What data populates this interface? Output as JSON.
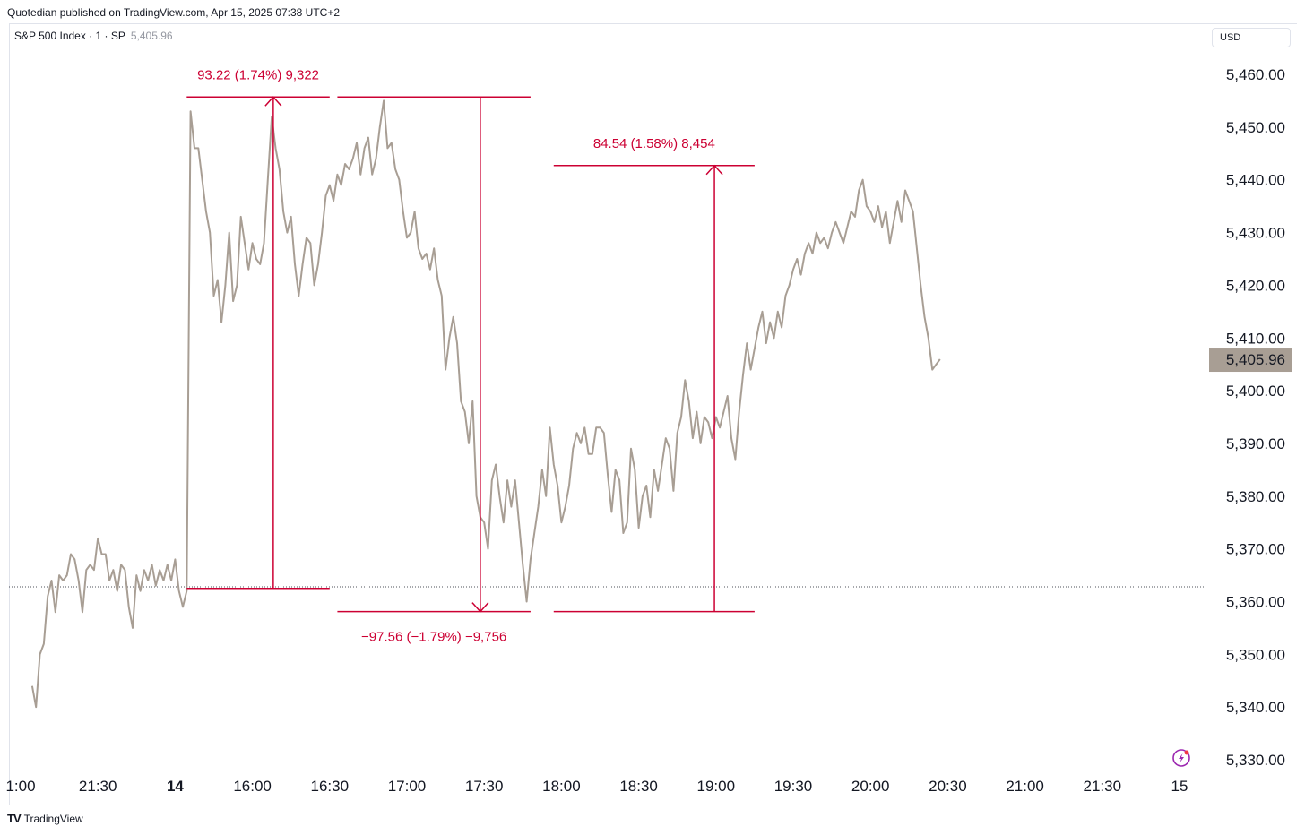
{
  "header": {
    "published": "Quotedian published on TradingView.com, Apr 15, 2025 07:38 UTC+2"
  },
  "legend": {
    "symbol": "S&P 500 Index · 1 · SP",
    "last_value": "5,405.96"
  },
  "currency_button": "USD",
  "footer": {
    "brand": "TradingView",
    "logo_icon": "tradingview-logo-icon"
  },
  "colors": {
    "line": "#a89e94",
    "measure": "#cc0033",
    "price_tag_bg": "#a89e94",
    "axis_text": "#131722"
  },
  "chart_data": {
    "type": "line",
    "title": "",
    "xlabel": "",
    "ylabel": "",
    "ylim": [
      5330,
      5460
    ],
    "y_ticks": [
      "5,460.00",
      "5,450.00",
      "5,440.00",
      "5,430.00",
      "5,420.00",
      "5,410.00",
      "5,400.00",
      "5,390.00",
      "5,380.00",
      "5,370.00",
      "5,360.00",
      "5,350.00",
      "5,340.00",
      "5,330.00"
    ],
    "x_ticks": [
      {
        "label": "1:00",
        "pos": 0.0
      },
      {
        "label": "21:30",
        "pos": 1.0
      },
      {
        "label": "14",
        "pos": 2.0,
        "bold": true
      },
      {
        "label": "16:00",
        "pos": 3.0
      },
      {
        "label": "16:30",
        "pos": 4.0
      },
      {
        "label": "17:00",
        "pos": 5.0
      },
      {
        "label": "17:30",
        "pos": 6.0
      },
      {
        "label": "18:00",
        "pos": 7.0
      },
      {
        "label": "18:30",
        "pos": 8.0
      },
      {
        "label": "19:00",
        "pos": 9.0
      },
      {
        "label": "19:30",
        "pos": 10.0
      },
      {
        "label": "20:00",
        "pos": 11.0
      },
      {
        "label": "20:30",
        "pos": 12.0
      },
      {
        "label": "21:00",
        "pos": 13.0
      },
      {
        "label": "21:30",
        "pos": 14.0
      },
      {
        "label": "15",
        "pos": 15.0
      }
    ],
    "x_range": [
      0.15,
      15.05
    ],
    "series": [
      {
        "points": [
          [
            0.15,
            5344
          ],
          [
            0.2,
            5340
          ],
          [
            0.25,
            5350
          ],
          [
            0.3,
            5352
          ],
          [
            0.35,
            5361
          ],
          [
            0.4,
            5364
          ],
          [
            0.45,
            5358
          ],
          [
            0.5,
            5365
          ],
          [
            0.55,
            5364
          ],
          [
            0.6,
            5365
          ],
          [
            0.65,
            5369
          ],
          [
            0.7,
            5368
          ],
          [
            0.75,
            5364
          ],
          [
            0.8,
            5358
          ],
          [
            0.85,
            5366
          ],
          [
            0.9,
            5367
          ],
          [
            0.95,
            5366
          ],
          [
            1.0,
            5372
          ],
          [
            1.05,
            5369
          ],
          [
            1.1,
            5369
          ],
          [
            1.15,
            5364
          ],
          [
            1.2,
            5366
          ],
          [
            1.25,
            5362
          ],
          [
            1.3,
            5367
          ],
          [
            1.35,
            5366
          ],
          [
            1.4,
            5359
          ],
          [
            1.45,
            5355
          ],
          [
            1.5,
            5365
          ],
          [
            1.55,
            5362
          ],
          [
            1.6,
            5366
          ],
          [
            1.65,
            5364
          ],
          [
            1.7,
            5367
          ],
          [
            1.75,
            5363
          ],
          [
            1.8,
            5366
          ],
          [
            1.85,
            5364
          ],
          [
            1.9,
            5367
          ],
          [
            1.95,
            5364
          ],
          [
            2.0,
            5368
          ],
          [
            2.05,
            5362
          ],
          [
            2.1,
            5359
          ],
          [
            2.15,
            5362
          ],
          [
            2.2,
            5453
          ],
          [
            2.25,
            5446
          ],
          [
            2.3,
            5446
          ],
          [
            2.35,
            5440
          ],
          [
            2.4,
            5434
          ],
          [
            2.45,
            5430
          ],
          [
            2.5,
            5418
          ],
          [
            2.55,
            5421
          ],
          [
            2.6,
            5413
          ],
          [
            2.65,
            5420
          ],
          [
            2.7,
            5430
          ],
          [
            2.75,
            5417
          ],
          [
            2.8,
            5420
          ],
          [
            2.85,
            5433
          ],
          [
            2.9,
            5428
          ],
          [
            2.95,
            5423
          ],
          [
            3.0,
            5428
          ],
          [
            3.05,
            5425
          ],
          [
            3.1,
            5424
          ],
          [
            3.15,
            5428
          ],
          [
            3.2,
            5440
          ],
          [
            3.25,
            5452
          ],
          [
            3.3,
            5446
          ],
          [
            3.35,
            5442
          ],
          [
            3.4,
            5434
          ],
          [
            3.45,
            5430
          ],
          [
            3.5,
            5433
          ],
          [
            3.55,
            5424
          ],
          [
            3.6,
            5418
          ],
          [
            3.65,
            5424
          ],
          [
            3.7,
            5429
          ],
          [
            3.75,
            5428
          ],
          [
            3.8,
            5420
          ],
          [
            3.85,
            5424
          ],
          [
            3.9,
            5430
          ],
          [
            3.95,
            5437
          ],
          [
            4.0,
            5439
          ],
          [
            4.05,
            5436
          ],
          [
            4.1,
            5441
          ],
          [
            4.15,
            5439
          ],
          [
            4.2,
            5443
          ],
          [
            4.25,
            5442
          ],
          [
            4.3,
            5444
          ],
          [
            4.35,
            5447
          ],
          [
            4.4,
            5441
          ],
          [
            4.45,
            5446
          ],
          [
            4.5,
            5448
          ],
          [
            4.55,
            5441
          ],
          [
            4.6,
            5444
          ],
          [
            4.65,
            5450
          ],
          [
            4.7,
            5455
          ],
          [
            4.75,
            5446
          ],
          [
            4.8,
            5447
          ],
          [
            4.85,
            5442
          ],
          [
            4.9,
            5440
          ],
          [
            4.95,
            5434
          ],
          [
            5.0,
            5429
          ],
          [
            5.05,
            5430
          ],
          [
            5.1,
            5434
          ],
          [
            5.15,
            5427
          ],
          [
            5.2,
            5425
          ],
          [
            5.25,
            5426
          ],
          [
            5.3,
            5423
          ],
          [
            5.35,
            5427
          ],
          [
            5.4,
            5421
          ],
          [
            5.45,
            5418
          ],
          [
            5.5,
            5404
          ],
          [
            5.55,
            5410
          ],
          [
            5.6,
            5414
          ],
          [
            5.65,
            5409
          ],
          [
            5.7,
            5398
          ],
          [
            5.75,
            5396
          ],
          [
            5.8,
            5390
          ],
          [
            5.85,
            5398
          ],
          [
            5.9,
            5380
          ],
          [
            5.95,
            5376
          ],
          [
            6.0,
            5375
          ],
          [
            6.05,
            5370
          ],
          [
            6.1,
            5383
          ],
          [
            6.15,
            5386
          ],
          [
            6.2,
            5380
          ],
          [
            6.25,
            5375
          ],
          [
            6.3,
            5383
          ],
          [
            6.35,
            5378
          ],
          [
            6.4,
            5383
          ],
          [
            6.45,
            5375
          ],
          [
            6.5,
            5367
          ],
          [
            6.55,
            5360
          ],
          [
            6.6,
            5368
          ],
          [
            6.65,
            5373
          ],
          [
            6.7,
            5378
          ],
          [
            6.75,
            5385
          ],
          [
            6.8,
            5380
          ],
          [
            6.85,
            5393
          ],
          [
            6.9,
            5386
          ],
          [
            6.95,
            5382
          ],
          [
            7.0,
            5375
          ],
          [
            7.05,
            5378
          ],
          [
            7.1,
            5382
          ],
          [
            7.15,
            5389
          ],
          [
            7.2,
            5392
          ],
          [
            7.25,
            5390
          ],
          [
            7.3,
            5393
          ],
          [
            7.35,
            5388
          ],
          [
            7.4,
            5388
          ],
          [
            7.45,
            5393
          ],
          [
            7.5,
            5393
          ],
          [
            7.55,
            5392
          ],
          [
            7.6,
            5384
          ],
          [
            7.65,
            5377
          ],
          [
            7.7,
            5385
          ],
          [
            7.75,
            5383
          ],
          [
            7.8,
            5373
          ],
          [
            7.85,
            5375
          ],
          [
            7.9,
            5389
          ],
          [
            7.95,
            5385
          ],
          [
            8.0,
            5374
          ],
          [
            8.05,
            5380
          ],
          [
            8.1,
            5382
          ],
          [
            8.15,
            5376
          ],
          [
            8.2,
            5385
          ],
          [
            8.25,
            5381
          ],
          [
            8.3,
            5386
          ],
          [
            8.35,
            5391
          ],
          [
            8.4,
            5389
          ],
          [
            8.45,
            5381
          ],
          [
            8.5,
            5392
          ],
          [
            8.55,
            5395
          ],
          [
            8.6,
            5402
          ],
          [
            8.65,
            5398
          ],
          [
            8.7,
            5391
          ],
          [
            8.75,
            5396
          ],
          [
            8.8,
            5390
          ],
          [
            8.85,
            5395
          ],
          [
            8.9,
            5394
          ],
          [
            8.95,
            5391
          ],
          [
            9.0,
            5395
          ],
          [
            9.05,
            5393
          ],
          [
            9.1,
            5396
          ],
          [
            9.15,
            5399
          ],
          [
            9.2,
            5391
          ],
          [
            9.25,
            5387
          ],
          [
            9.3,
            5396
          ],
          [
            9.35,
            5403
          ],
          [
            9.4,
            5409
          ],
          [
            9.45,
            5404
          ],
          [
            9.5,
            5408
          ],
          [
            9.55,
            5412
          ],
          [
            9.6,
            5415
          ],
          [
            9.65,
            5409
          ],
          [
            9.7,
            5413
          ],
          [
            9.75,
            5410
          ],
          [
            9.8,
            5415
          ],
          [
            9.85,
            5412
          ],
          [
            9.9,
            5418
          ],
          [
            9.95,
            5420
          ],
          [
            10.0,
            5423
          ],
          [
            10.05,
            5425
          ],
          [
            10.1,
            5422
          ],
          [
            10.15,
            5426
          ],
          [
            10.2,
            5428
          ],
          [
            10.25,
            5426
          ],
          [
            10.3,
            5430
          ],
          [
            10.35,
            5428
          ],
          [
            10.4,
            5429
          ],
          [
            10.45,
            5427
          ],
          [
            10.5,
            5430
          ],
          [
            10.55,
            5432
          ],
          [
            10.6,
            5430
          ],
          [
            10.65,
            5428
          ],
          [
            10.7,
            5431
          ],
          [
            10.75,
            5434
          ],
          [
            10.8,
            5433
          ],
          [
            10.85,
            5438
          ],
          [
            10.9,
            5440
          ],
          [
            10.95,
            5435
          ],
          [
            11.0,
            5434
          ],
          [
            11.05,
            5432
          ],
          [
            11.1,
            5435
          ],
          [
            11.15,
            5431
          ],
          [
            11.2,
            5434
          ],
          [
            11.25,
            5428
          ],
          [
            11.3,
            5432
          ],
          [
            11.35,
            5436
          ],
          [
            11.4,
            5432
          ],
          [
            11.45,
            5438
          ],
          [
            11.5,
            5436
          ],
          [
            11.55,
            5434
          ],
          [
            11.6,
            5427
          ],
          [
            11.65,
            5420
          ],
          [
            11.7,
            5414
          ],
          [
            11.75,
            5410
          ],
          [
            11.8,
            5404
          ],
          [
            11.85,
            5405
          ],
          [
            11.9,
            5405.96
          ]
        ],
        "note_gap": [
          [
            2.12,
            5359
          ],
          [
            2.14,
            5450
          ]
        ]
      }
    ],
    "measurements": [
      {
        "label": "93.22 (1.74%) 9,322",
        "from": 5362.5,
        "to": 5455.7,
        "x_left": 2.15,
        "x_right": 4.0,
        "x_arrow": 3.27,
        "direction": "up"
      },
      {
        "label": "−97.56 (−1.79%) −9,756",
        "from": 5455.7,
        "to": 5358.1,
        "x_left": 4.1,
        "x_right": 6.6,
        "x_arrow": 5.95,
        "direction": "down"
      },
      {
        "label": "84.54 (1.58%) 8,454",
        "from": 5358.1,
        "to": 5442.7,
        "x_left": 6.9,
        "x_right": 9.5,
        "x_arrow": 8.98,
        "direction": "up"
      }
    ],
    "reference_line": 5362.8,
    "last_price_label": "5,405.96",
    "grid": false
  }
}
